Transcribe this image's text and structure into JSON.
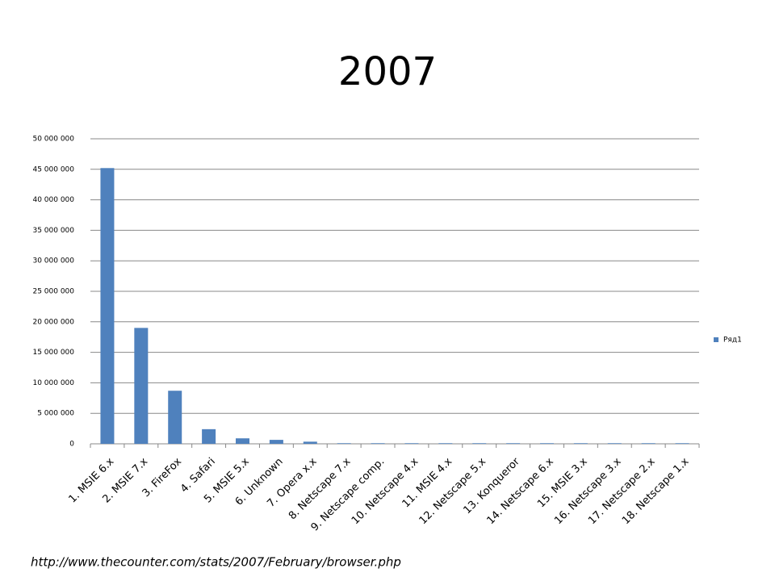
{
  "chart_data": {
    "type": "bar",
    "title": "2007",
    "categories": [
      "1. MSIE 6.x",
      "2. MSIE 7.x",
      "3. FireFox",
      "4. Safari",
      "5. MSIE 5.x",
      "6. Unknown",
      "7. Opera x.x",
      "8. Netscape 7.x",
      "9. Netscape comp.",
      "10. Netscape 4.x",
      "11. MSIE 4.x",
      "12. Netscape 5.x",
      "13. Konqueror",
      "14. Netscape 6.x",
      "15. MSIE 3.x",
      "16. Netscape 3.x",
      "17. Netscape 2.x",
      "18. Netscape 1.x"
    ],
    "series": [
      {
        "name": "Ряд1",
        "color": "#4f81bd",
        "values": [
          45200000,
          19000000,
          8700000,
          2400000,
          900000,
          650000,
          350000,
          100000,
          100000,
          100000,
          100000,
          100000,
          100000,
          100000,
          100000,
          100000,
          100000,
          100000
        ]
      }
    ],
    "ylim": [
      0,
      50000000
    ],
    "yticks": [
      0,
      {
        "value": 5000000,
        "label": "5 000 000"
      },
      {
        "value": 10000000,
        "label": "10 000 000"
      },
      {
        "value": 15000000,
        "label": "15 000 000"
      },
      {
        "value": 20000000,
        "label": "20 000 000"
      },
      {
        "value": 25000000,
        "label": "25 000 000"
      },
      {
        "value": 30000000,
        "label": "30 000 000"
      },
      {
        "value": 35000000,
        "label": "35 000 000"
      },
      {
        "value": 40000000,
        "label": "40 000 000"
      },
      {
        "value": 45000000,
        "label": "45 000 000"
      },
      {
        "value": 50000000,
        "label": "50 000 000"
      }
    ],
    "grid": true,
    "legend": "right",
    "source": "http://www.thecounter.com/stats/2007/February/browser.php"
  }
}
